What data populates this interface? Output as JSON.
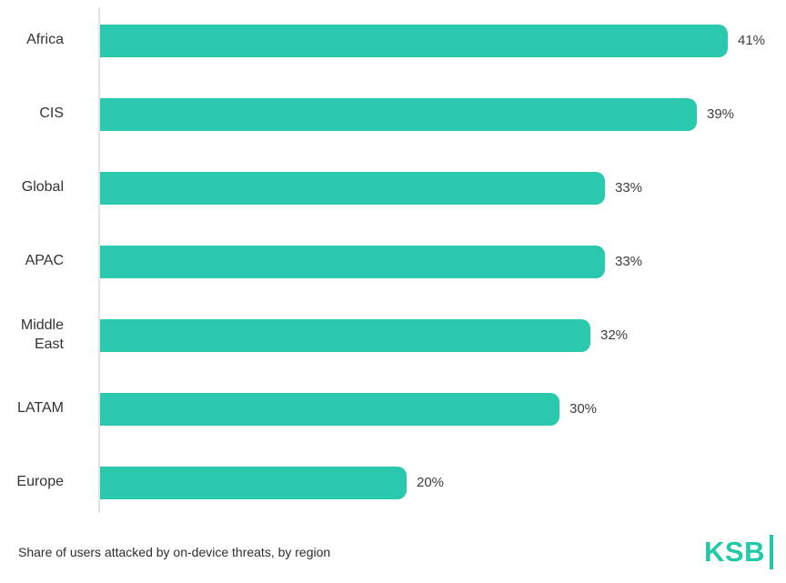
{
  "chart_data": {
    "type": "bar",
    "orientation": "horizontal",
    "categories": [
      "Africa",
      "CIS",
      "Global",
      "APAC",
      "Middle East",
      "LATAM",
      "Europe"
    ],
    "values": [
      41,
      39,
      33,
      33,
      32,
      30,
      20
    ],
    "value_labels": [
      "41%",
      "39%",
      "33%",
      "33%",
      "32%",
      "30%",
      "20%"
    ],
    "title": "",
    "xlabel": "",
    "ylabel": "",
    "xlim": [
      0,
      42.5
    ],
    "grid": "off",
    "legend": "none",
    "bar_color": "#2ac8ac",
    "axis_line_color": "#e4e4e4",
    "caption": "Share of users attacked by on-device threats, by region"
  },
  "caption": "Share of users attacked by on-device threats, by region",
  "logo": {
    "text": "KSB",
    "color": "#20c9a7"
  }
}
